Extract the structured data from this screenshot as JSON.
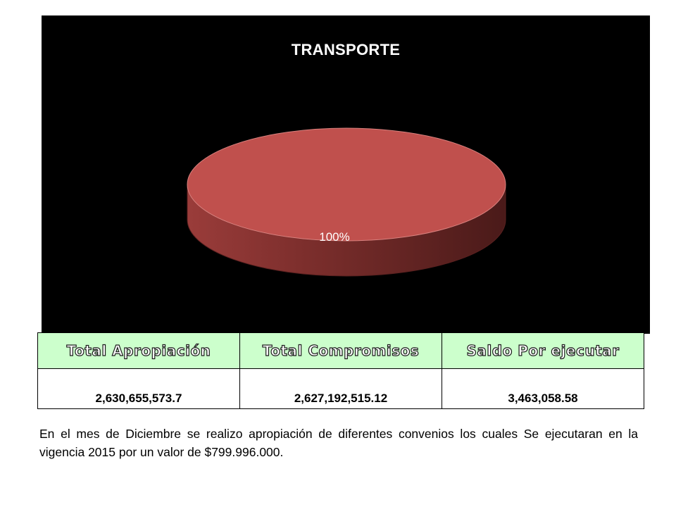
{
  "chart_data": {
    "type": "pie",
    "title": "TRANSPORTE",
    "categories": [
      ""
    ],
    "values": [
      100
    ],
    "data_labels": [
      "100%"
    ],
    "colors": [
      "#c0504d"
    ]
  },
  "summary_table": {
    "headers": [
      "Total Apropiación",
      "Total Compromisos",
      "Saldo Por ejecutar"
    ],
    "values": [
      "2,630,655,573.7",
      "2,627,192,515.12",
      "3,463,058.58"
    ]
  },
  "footnote": "En el mes de Diciembre se realizo apropiación de diferentes convenios los cuales Se ejecutaran en la vigencia 2015 por un valor de $799.996.000."
}
